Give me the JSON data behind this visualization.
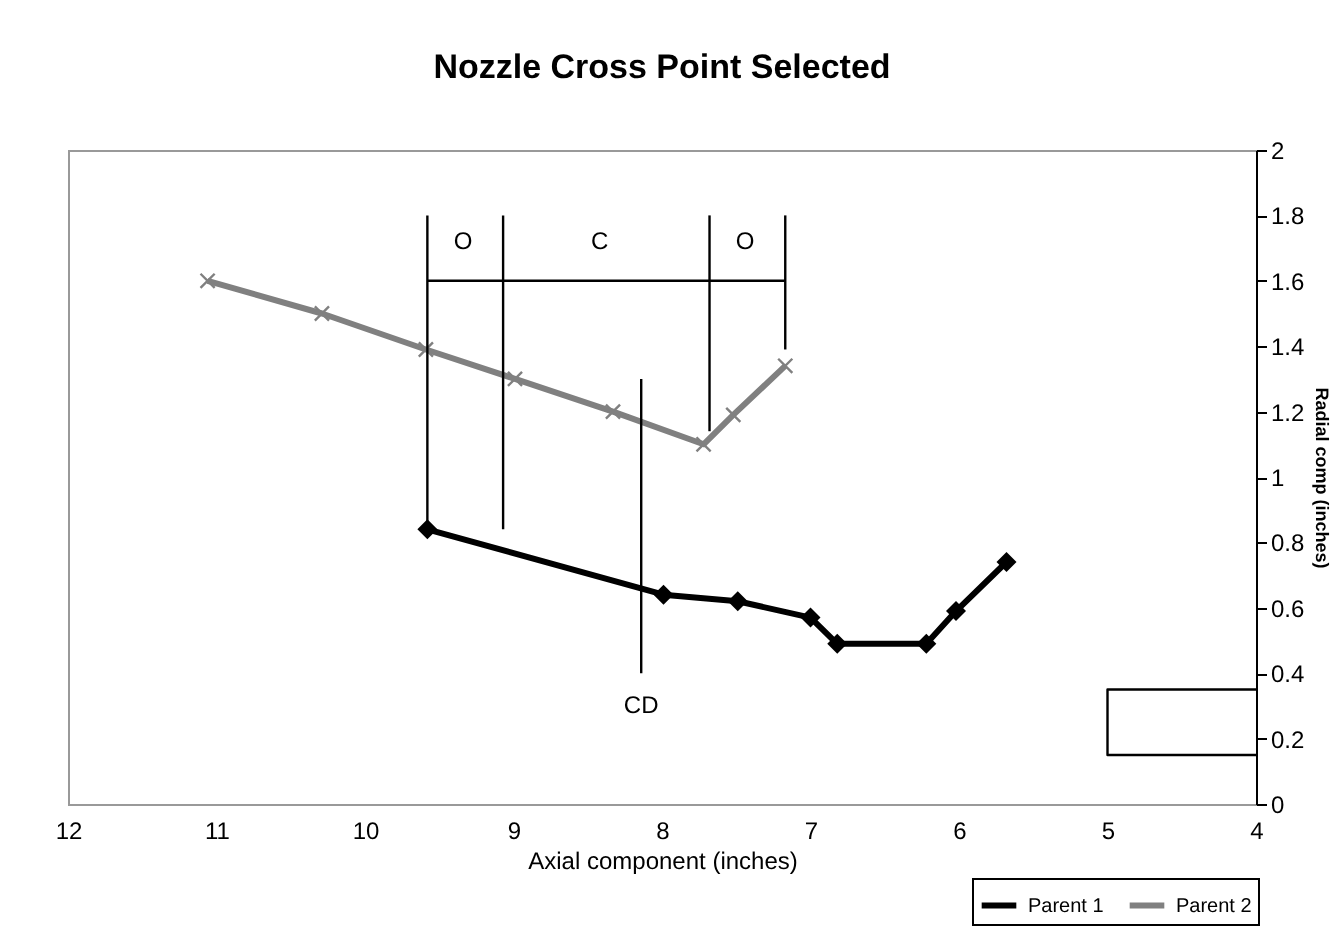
{
  "chart_data": {
    "type": "line",
    "title": "Nozzle Cross Point Selected",
    "xlabel": "Axial component (inches)",
    "ylabel": "Radial comp (inches)",
    "xlim": [
      12,
      4
    ],
    "xticks": [
      12,
      11,
      10,
      9,
      8,
      7,
      6,
      5,
      4
    ],
    "ylim": [
      0,
      2
    ],
    "yticks": [
      0,
      0.2,
      0.4,
      0.6,
      0.8,
      1,
      1.2,
      1.4,
      1.6,
      1.8,
      2
    ],
    "grid": false,
    "legend": "bottom right",
    "series": [
      {
        "name": "Parent 1",
        "color": "#000000",
        "marker": "diamond",
        "x": [
          9.58,
          7.99,
          7.49,
          7.0,
          6.82,
          6.22,
          6.02,
          5.68
        ],
        "values": [
          0.84,
          0.64,
          0.62,
          0.57,
          0.49,
          0.49,
          0.59,
          0.74
        ]
      },
      {
        "name": "Parent 2",
        "color": "#808080",
        "marker": "cross",
        "x": [
          11.06,
          10.29,
          9.59,
          8.99,
          8.33,
          7.72,
          7.52,
          7.17
        ],
        "values": [
          1.6,
          1.5,
          1.39,
          1.3,
          1.2,
          1.1,
          1.19,
          1.34
        ]
      },
      {
        "color": "#000000",
        "marker": "none",
        "x": [
          9.58,
          9.58
        ],
        "values": [
          0.84,
          1.8
        ]
      },
      {
        "color": "#000000",
        "marker": "none",
        "x": [
          9.07,
          9.07
        ],
        "values": [
          0.84,
          1.8
        ]
      },
      {
        "color": "#000000",
        "marker": "none",
        "x": [
          7.68,
          7.68
        ],
        "values": [
          1.14,
          1.8
        ]
      },
      {
        "color": "#000000",
        "marker": "none",
        "x": [
          7.17,
          7.17
        ],
        "values": [
          1.39,
          1.8
        ]
      },
      {
        "color": "#000000",
        "marker": "none",
        "x": [
          8.14,
          8.14
        ],
        "values": [
          0.4,
          1.3
        ]
      },
      {
        "color": "#000000",
        "marker": "none",
        "x": [
          9.58,
          9.34,
          9.07,
          8.42,
          7.68,
          7.44,
          7.17
        ],
        "values": [
          1.6,
          1.6,
          1.6,
          1.6,
          1.6,
          1.6,
          1.6
        ]
      },
      {
        "color": "#000000",
        "marker": "none",
        "x": [
          4,
          5,
          5,
          4
        ],
        "values": [
          0.35,
          0.35,
          0.15,
          0.15
        ]
      }
    ],
    "annotations": [
      {
        "text": "O",
        "x": 9.34,
        "y": 1.6
      },
      {
        "text": "C",
        "x": 8.42,
        "y": 1.6
      },
      {
        "text": "O",
        "x": 7.44,
        "y": 1.6
      },
      {
        "text": "CD",
        "x": 8.14,
        "y": 0.4
      }
    ]
  }
}
